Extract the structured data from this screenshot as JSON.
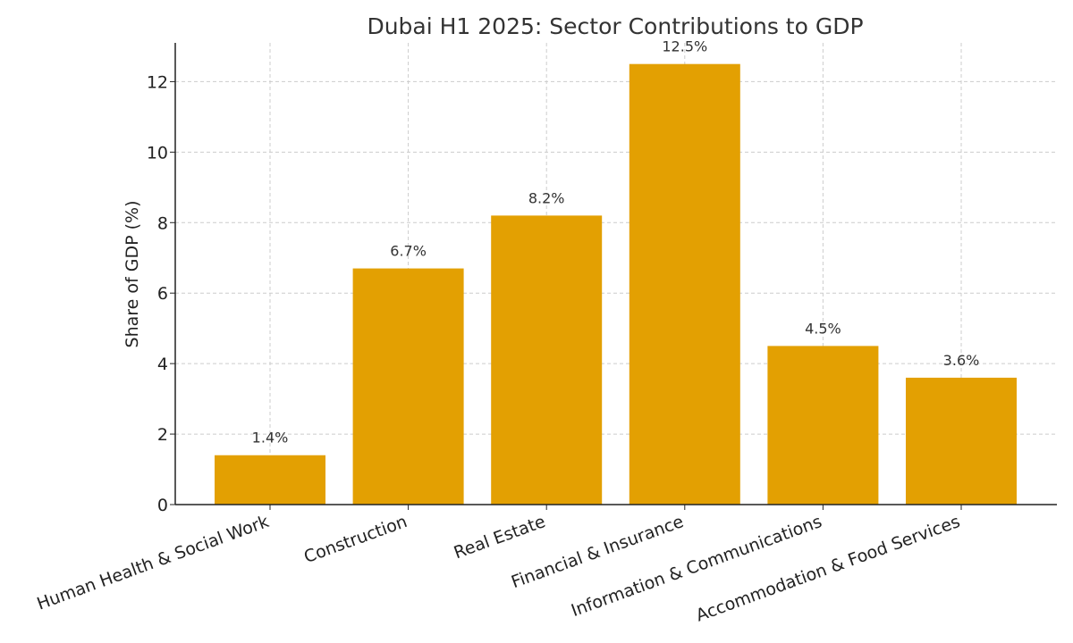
{
  "chart_data": {
    "type": "bar",
    "title": "Dubai H1 2025: Sector Contributions to GDP",
    "xlabel": "",
    "ylabel": "Share of GDP (%)",
    "categories": [
      "Human Health & Social Work",
      "Construction",
      "Real Estate",
      "Financial & Insurance",
      "Information & Communications",
      "Accommodation & Food Services"
    ],
    "values": [
      1.4,
      6.7,
      8.2,
      12.5,
      4.5,
      3.6
    ],
    "value_labels": [
      "1.4%",
      "6.7%",
      "8.2%",
      "12.5%",
      "4.5%",
      "3.6%"
    ],
    "ylim": [
      0,
      13.1
    ],
    "yticks": [
      0,
      2,
      4,
      6,
      8,
      10,
      12
    ],
    "ytick_labels": [
      "0",
      "2",
      "4",
      "6",
      "8",
      "10",
      "12"
    ],
    "bar_color": "#E3A002",
    "grid": true,
    "legend": null
  }
}
